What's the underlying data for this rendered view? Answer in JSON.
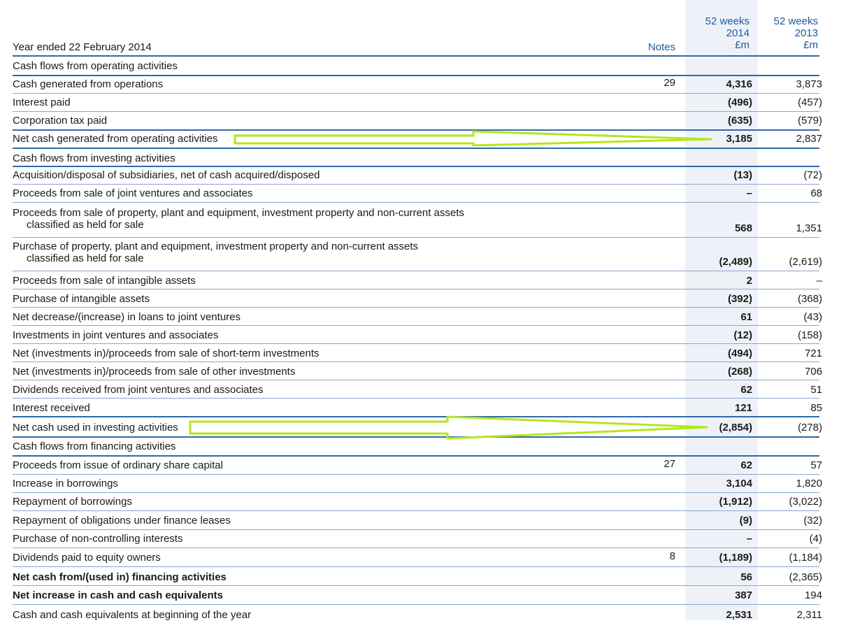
{
  "header": {
    "title": "Year ended 22 February 2014",
    "notes_label": "Notes",
    "col2014": [
      "52 weeks",
      "2014",
      "£m"
    ],
    "col2013": [
      "52 weeks",
      "2013",
      "£m"
    ]
  },
  "rows": [
    {
      "label": "Cash flows from operating activities",
      "note": "",
      "v2014": "",
      "v2013": "",
      "kind": "section"
    },
    {
      "label": "Cash generated from operations",
      "note": "29",
      "v2014": "4,316",
      "v2013": "3,873"
    },
    {
      "label": "Interest paid",
      "note": "",
      "v2014": "(496)",
      "v2013": "(457)"
    },
    {
      "label": "Corporation tax paid",
      "note": "",
      "v2014": "(635)",
      "v2013": "(579)"
    },
    {
      "label": "Net cash generated from operating activities",
      "note": "",
      "v2014": "3,185",
      "v2013": "2,837",
      "kind": "total"
    },
    {
      "label": "Cash flows from investing activities",
      "note": "",
      "v2014": "",
      "v2013": "",
      "kind": "section"
    },
    {
      "label": "Acquisition/disposal of subsidiaries, net of cash acquired/disposed",
      "note": "",
      "v2014": "(13)",
      "v2013": "(72)"
    },
    {
      "label": "Proceeds from sale of joint ventures and associates",
      "note": "",
      "v2014": "–",
      "v2013": "68"
    },
    {
      "label": "Proceeds from sale of property, plant and equipment, investment property and non-current assets",
      "label2": "classified as held for sale",
      "note": "",
      "v2014": "568",
      "v2013": "1,351"
    },
    {
      "label": "Purchase of property, plant and equipment, investment property and non-current assets",
      "label2": "classified as held for sale",
      "note": "",
      "v2014": "(2,489)",
      "v2013": "(2,619)"
    },
    {
      "label": "Proceeds from sale of intangible assets",
      "note": "",
      "v2014": "2",
      "v2013": "–"
    },
    {
      "label": "Purchase of intangible assets",
      "note": "",
      "v2014": "(392)",
      "v2013": "(368)"
    },
    {
      "label": "Net decrease/(increase) in loans to joint ventures",
      "note": "",
      "v2014": "61",
      "v2013": "(43)"
    },
    {
      "label": "Investments in joint ventures and associates",
      "note": "",
      "v2014": "(12)",
      "v2013": "(158)"
    },
    {
      "label": "Net (investments in)/proceeds from sale of short-term investments",
      "note": "",
      "v2014": "(494)",
      "v2013": "721"
    },
    {
      "label": "Net (investments in)/proceeds from sale of other investments",
      "note": "",
      "v2014": "(268)",
      "v2013": "706"
    },
    {
      "label": "Dividends received from joint ventures and associates",
      "note": "",
      "v2014": "62",
      "v2013": "51"
    },
    {
      "label": "Interest received",
      "note": "",
      "v2014": "121",
      "v2013": "85"
    },
    {
      "label": "Net cash used in investing activities",
      "note": "",
      "v2014": "(2,854)",
      "v2013": "(278)",
      "kind": "total"
    },
    {
      "label": "Cash flows from financing activities",
      "note": "",
      "v2014": "",
      "v2013": "",
      "kind": "section"
    },
    {
      "label": "Proceeds from issue of ordinary share capital",
      "note": "27",
      "v2014": "62",
      "v2013": "57"
    },
    {
      "label": "Increase in borrowings",
      "note": "",
      "v2014": "3,104",
      "v2013": "1,820"
    },
    {
      "label": "Repayment of borrowings",
      "note": "",
      "v2014": "(1,912)",
      "v2013": "(3,022)"
    },
    {
      "label": "Repayment of obligations under finance leases",
      "note": "",
      "v2014": "(9)",
      "v2013": "(32)"
    },
    {
      "label": "Purchase of non-controlling interests",
      "note": "",
      "v2014": "–",
      "v2013": "(4)"
    },
    {
      "label": "Dividends paid to equity owners",
      "note": "8",
      "v2014": "(1,189)",
      "v2013": "(1,184)"
    },
    {
      "label": "Net cash from/(used in) financing activities",
      "note": "",
      "v2014": "56",
      "v2013": "(2,365)",
      "kind": "totalbold"
    },
    {
      "label": "Net increase in cash and cash equivalents",
      "note": "",
      "v2014": "387",
      "v2013": "194",
      "kind": "totalbold"
    },
    {
      "label": "Cash and cash equivalents at beginning of the year",
      "note": "",
      "v2014": "2,531",
      "v2013": "2,311"
    }
  ],
  "colors": {
    "accent": "#1e5a9c",
    "rule": "#2e6aa8",
    "highlight_arrow": "#b5e61d",
    "shade": "#eef2f8"
  }
}
